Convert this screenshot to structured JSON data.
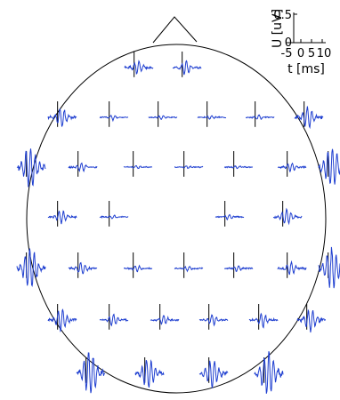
{
  "chart_data": {
    "type": "line",
    "title": "",
    "scale_bar": {
      "ylabel": "U [uV]",
      "y_tick_labels": [
        "0.5",
        "0"
      ],
      "y_ticks": [
        0.5,
        0
      ],
      "xlabel": "t [ms]",
      "x_tick_labels": [
        "-5",
        "0",
        "5",
        "10"
      ],
      "x_ticks": [
        -5,
        0,
        5,
        10
      ]
    },
    "x_range": [
      -5,
      10
    ],
    "y_range": [
      -0.7,
      0.6
    ],
    "trace_color": "#1f3fd0",
    "axis_color": "#000000",
    "channel_rows": [
      {
        "channels": [
          {
            "label": "",
            "amplitude": 0.22,
            "spread": 5
          },
          {
            "label": "",
            "amplitude": 0.22,
            "spread": 5
          }
        ]
      },
      {
        "channels": [
          {
            "label": "",
            "amplitude": 0.3,
            "spread": 6
          },
          {
            "label": "",
            "amplitude": 0.08,
            "spread": 4
          },
          {
            "label": "",
            "amplitude": 0.06,
            "spread": 4
          },
          {
            "label": "",
            "amplitude": 0.06,
            "spread": 4
          },
          {
            "label": "",
            "amplitude": 0.08,
            "spread": 4
          },
          {
            "label": "",
            "amplitude": 0.32,
            "spread": 6
          }
        ]
      },
      {
        "channels": [
          {
            "label": "",
            "amplitude": 0.6,
            "spread": 8
          },
          {
            "label": "",
            "amplitude": 0.14,
            "spread": 5
          },
          {
            "label": "",
            "amplitude": 0.05,
            "spread": 4
          },
          {
            "label": "",
            "amplitude": 0.04,
            "spread": 4
          },
          {
            "label": "",
            "amplitude": 0.05,
            "spread": 4
          },
          {
            "label": "",
            "amplitude": 0.14,
            "spread": 5
          },
          {
            "label": "",
            "amplitude": 0.6,
            "spread": 8
          }
        ]
      },
      {
        "channels": [
          {
            "label": "",
            "amplitude": 0.2,
            "spread": 5
          },
          {
            "label": "",
            "amplitude": 0.06,
            "spread": 4
          },
          {
            "label": "",
            "amplitude": 0.08,
            "spread": 4
          },
          {
            "label": "",
            "amplitude": 0.25,
            "spread": 6
          }
        ]
      },
      {
        "channels": [
          {
            "label": "",
            "amplitude": 0.62,
            "spread": 8
          },
          {
            "label": "",
            "amplitude": 0.2,
            "spread": 5
          },
          {
            "label": "",
            "amplitude": 0.1,
            "spread": 4
          },
          {
            "label": "",
            "amplitude": 0.08,
            "spread": 4
          },
          {
            "label": "",
            "amplitude": 0.1,
            "spread": 4
          },
          {
            "label": "",
            "amplitude": 0.22,
            "spread": 5
          },
          {
            "label": "",
            "amplitude": 0.62,
            "spread": 8
          }
        ]
      },
      {
        "channels": [
          {
            "label": "",
            "amplitude": 0.35,
            "spread": 6
          },
          {
            "label": "",
            "amplitude": 0.18,
            "spread": 5
          },
          {
            "label": "",
            "amplitude": 0.14,
            "spread": 5
          },
          {
            "label": "",
            "amplitude": 0.16,
            "spread": 5
          },
          {
            "label": "",
            "amplitude": 0.22,
            "spread": 5
          },
          {
            "label": "",
            "amplitude": 0.35,
            "spread": 6
          }
        ]
      },
      {
        "channels": [
          {
            "label": "",
            "amplitude": 0.65,
            "spread": 8
          },
          {
            "label": "",
            "amplitude": 0.45,
            "spread": 7
          },
          {
            "label": "",
            "amplitude": 0.42,
            "spread": 7
          },
          {
            "label": "",
            "amplitude": 0.65,
            "spread": 8
          }
        ]
      }
    ]
  }
}
